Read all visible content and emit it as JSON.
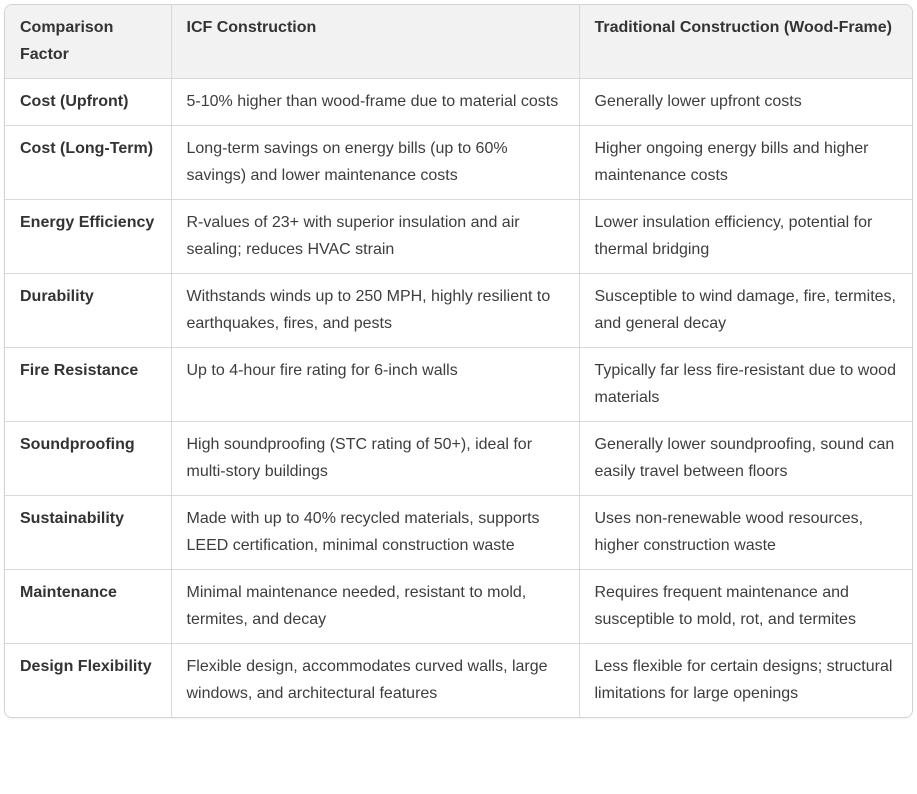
{
  "table": {
    "columns": [
      {
        "label": "Comparison Factor"
      },
      {
        "label": "ICF Construction"
      },
      {
        "label": "Traditional Construction (Wood-Frame)"
      }
    ],
    "rows": [
      {
        "factor": "Cost (Upfront)",
        "icf": "5-10% higher than wood-frame due to material costs",
        "traditional": "Generally lower upfront costs"
      },
      {
        "factor": "Cost (Long-Term)",
        "icf": "Long-term savings on energy bills (up to 60% savings) and lower maintenance costs",
        "traditional": "Higher ongoing energy bills and higher maintenance costs"
      },
      {
        "factor": "Energy Efficiency",
        "icf": "R-values of 23+ with superior insulation and air sealing; reduces HVAC strain",
        "traditional": "Lower insulation efficiency, potential for thermal bridging"
      },
      {
        "factor": "Durability",
        "icf": "Withstands winds up to 250 MPH, highly resilient to earthquakes, fires, and pests",
        "traditional": "Susceptible to wind damage, fire, termites, and general decay"
      },
      {
        "factor": "Fire Resistance",
        "icf": "Up to 4-hour fire rating for 6-inch walls",
        "traditional": "Typically far less fire-resistant due to wood materials"
      },
      {
        "factor": "Soundproofing",
        "icf": "High soundproofing (STC rating of 50+), ideal for multi-story buildings",
        "traditional": "Generally lower soundproofing, sound can easily travel between floors"
      },
      {
        "factor": "Sustainability",
        "icf": "Made with up to 40% recycled materials, supports LEED certification, minimal construction waste",
        "traditional": "Uses non-renewable wood resources, higher construction waste"
      },
      {
        "factor": "Maintenance",
        "icf": "Minimal maintenance needed, resistant to mold, termites, and decay",
        "traditional": "Requires frequent maintenance and susceptible to mold, rot, and termites"
      },
      {
        "factor": "Design Flexibility",
        "icf": "Flexible design, accommodates curved walls, large windows, and architectural features",
        "traditional": "Less flexible for certain designs; structural limitations for large openings"
      }
    ],
    "colors": {
      "header_bg": "#f2f2f2",
      "border": "#d9d9d9",
      "outer_border": "#d3d3d3",
      "heading_text": "#333333",
      "body_text": "#3d3d3d",
      "body_bg": "#ffffff"
    }
  }
}
